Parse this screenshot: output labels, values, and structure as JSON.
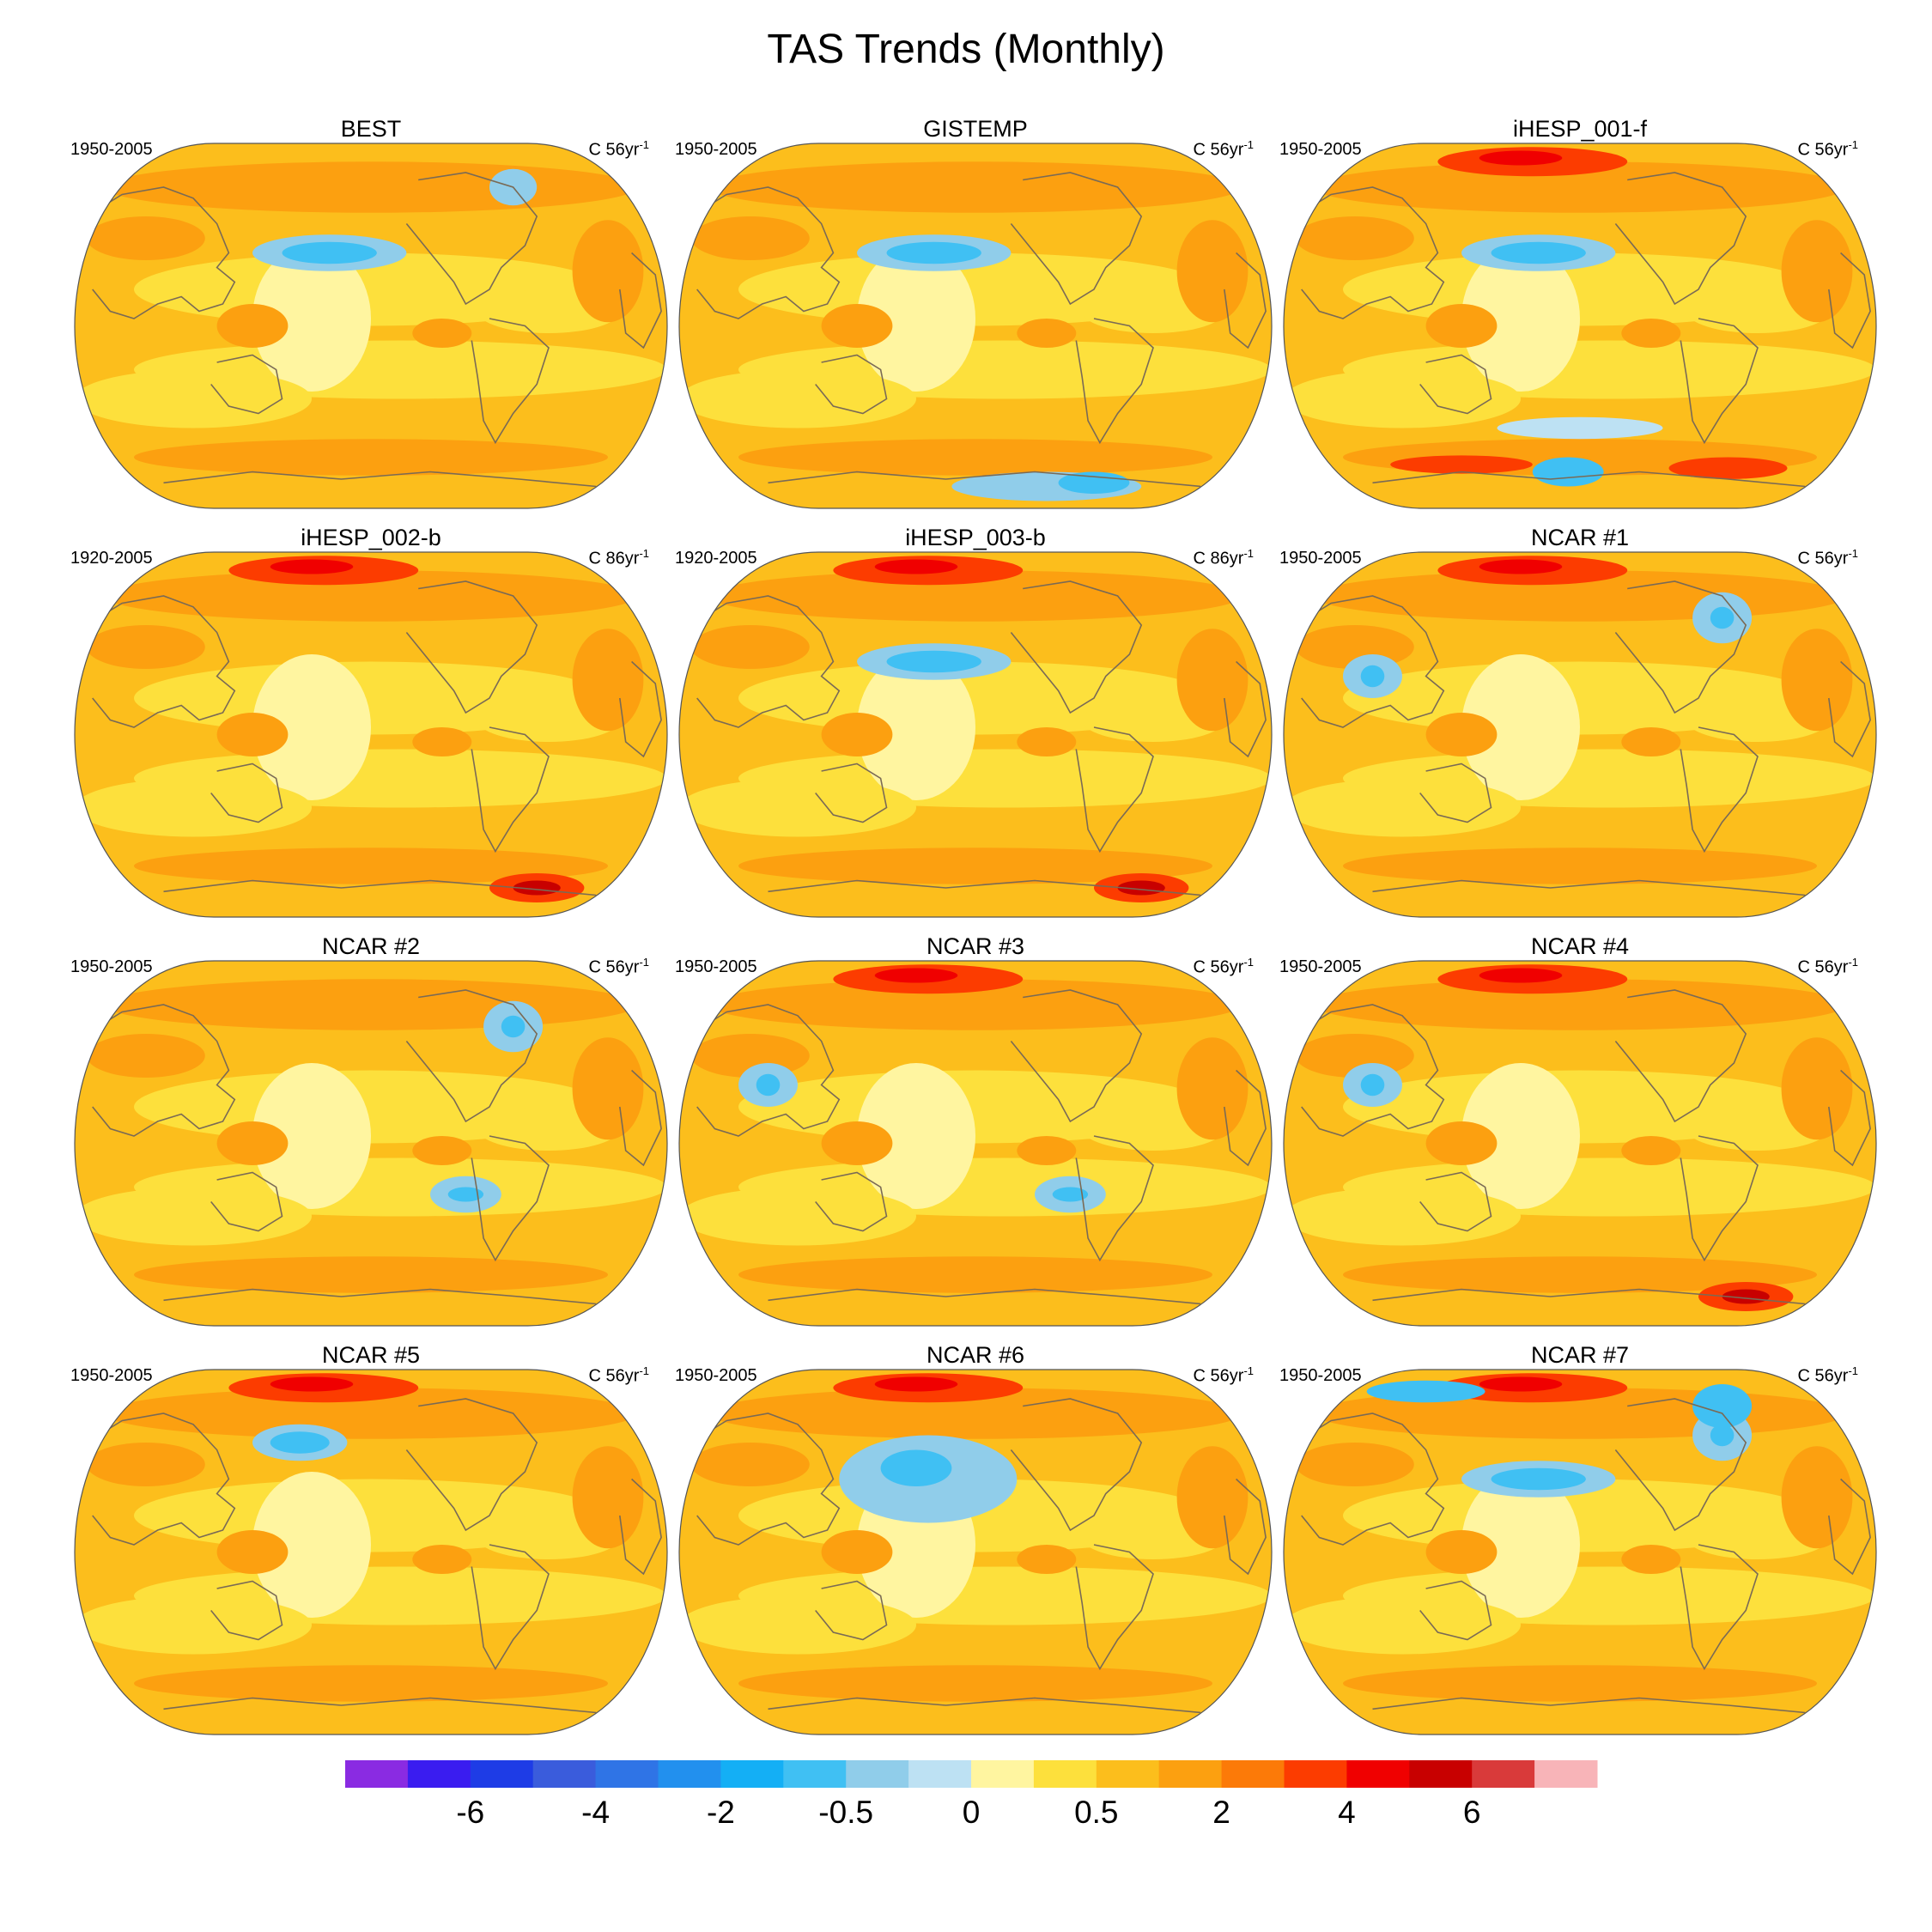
{
  "title": "TAS Trends (Monthly)",
  "projection": "Robinson (global, Pacific-centred)",
  "colors": {
    "background": "#ffffff",
    "coastline": "#7a6a55",
    "map_border": "#555555"
  },
  "panels": [
    {
      "name": "BEST",
      "period": "1950-2005",
      "units_prefix": "C 56yr",
      "units_exp": "-1",
      "dominant": "warm",
      "features": [
        "cool-npac",
        "warm-sh-ice",
        "cool-arctic"
      ]
    },
    {
      "name": "GISTEMP",
      "period": "1950-2005",
      "units_prefix": "C 56yr",
      "units_exp": "-1",
      "dominant": "warm",
      "features": [
        "cool-npac",
        "cool-antarctic"
      ]
    },
    {
      "name": "iHESP_001-f",
      "period": "1950-2005",
      "units_prefix": "C 56yr",
      "units_exp": "-1",
      "dominant": "warm",
      "features": [
        "cool-npac",
        "red-arctic",
        "red-sh-ice",
        "cool-so"
      ]
    },
    {
      "name": "iHESP_002-b",
      "period": "1920-2005",
      "units_prefix": "C 86yr",
      "units_exp": "-1",
      "dominant": "warm",
      "features": [
        "red-arctic",
        "red-antarctic"
      ]
    },
    {
      "name": "iHESP_003-b",
      "period": "1920-2005",
      "units_prefix": "C 86yr",
      "units_exp": "-1",
      "dominant": "warm",
      "features": [
        "cool-npac",
        "red-arctic",
        "red-antarctic"
      ]
    },
    {
      "name": "NCAR #1",
      "period": "1950-2005",
      "units_prefix": "C 56yr",
      "units_exp": "-1",
      "dominant": "warm",
      "features": [
        "cool-natl",
        "red-arctic",
        "cool-asia"
      ]
    },
    {
      "name": "NCAR #2",
      "period": "1950-2005",
      "units_prefix": "C 56yr",
      "units_exp": "-1",
      "dominant": "warm",
      "features": [
        "cool-natl",
        "cool-spac"
      ]
    },
    {
      "name": "NCAR #3",
      "period": "1950-2005",
      "units_prefix": "C 56yr",
      "units_exp": "-1",
      "dominant": "warm",
      "features": [
        "red-arctic",
        "cool-spac",
        "cool-asia"
      ]
    },
    {
      "name": "NCAR #4",
      "period": "1950-2005",
      "units_prefix": "C 56yr",
      "units_exp": "-1",
      "dominant": "warm",
      "features": [
        "red-arctic",
        "red-antarctic",
        "cool-asia"
      ]
    },
    {
      "name": "NCAR #5",
      "period": "1950-2005",
      "units_prefix": "C 56yr",
      "units_exp": "-1",
      "dominant": "warm",
      "features": [
        "cool-npac-small",
        "red-arctic"
      ]
    },
    {
      "name": "NCAR #6",
      "period": "1950-2005",
      "units_prefix": "C 56yr",
      "units_exp": "-1",
      "dominant": "warm",
      "features": [
        "cool-npac-large",
        "red-arctic"
      ]
    },
    {
      "name": "NCAR #7",
      "period": "1950-2005",
      "units_prefix": "C 56yr",
      "units_exp": "-1",
      "dominant": "warm",
      "features": [
        "cool-npac",
        "red-arctic",
        "cool-natl",
        "cool-arctic-w"
      ]
    }
  ],
  "colorbar": {
    "colors": [
      "#8a2be2",
      "#3a1cf0",
      "#1e3ce6",
      "#3a5cdc",
      "#2f74e6",
      "#2290ee",
      "#14aff5",
      "#40c0f3",
      "#90cdea",
      "#bde1f3",
      "#fff5a0",
      "#fde03c",
      "#fcbe1c",
      "#fca010",
      "#fc7a08",
      "#fc3c00",
      "#f00000",
      "#c80000",
      "#d93a3a",
      "#f8b4b8"
    ],
    "labels": [
      "-6",
      "-4",
      "-2",
      "-0.5",
      "0",
      "0.5",
      "2",
      "4",
      "6"
    ],
    "label_boundaries": [
      2,
      4,
      6,
      8,
      10,
      12,
      14,
      16,
      18
    ]
  }
}
